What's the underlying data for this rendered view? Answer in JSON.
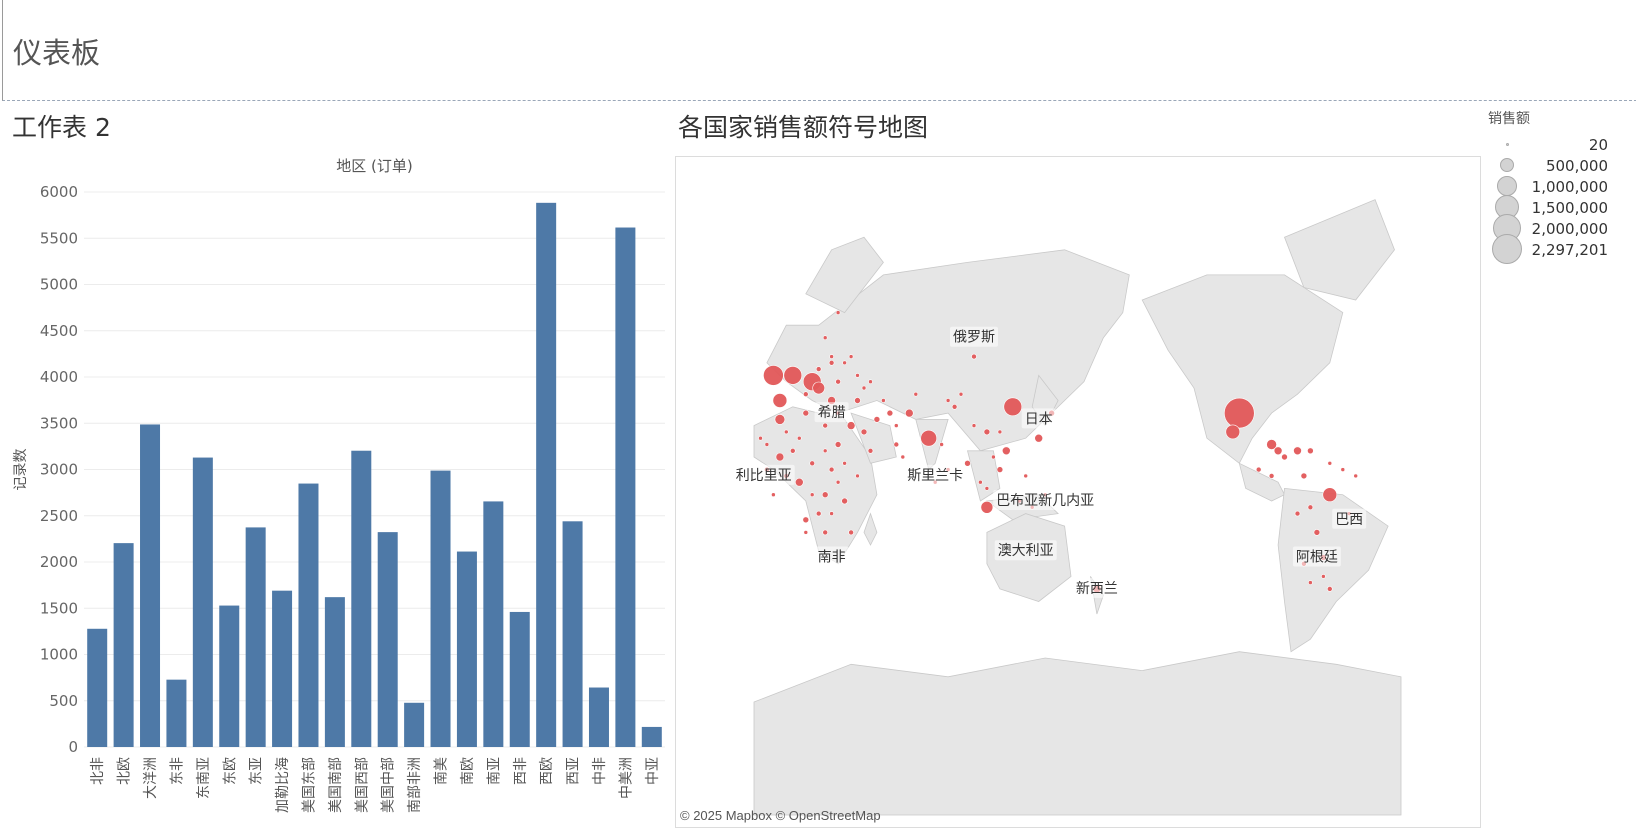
{
  "dashboard": {
    "title": "仪表板"
  },
  "worksheet": {
    "title": "工作表 2"
  },
  "map_sheet": {
    "title": "各国家销售额符号地图"
  },
  "chart_data": [
    {
      "type": "bar",
      "title": "地区 (订单)",
      "xlabel": "",
      "ylabel": "记录数",
      "ylim": [
        0,
        6000
      ],
      "yticks": [
        0,
        500,
        1000,
        1500,
        2000,
        2500,
        3000,
        3500,
        4000,
        4500,
        5000,
        5500,
        6000
      ],
      "bar_color": "#4e79a7",
      "grid": true,
      "categories": [
        "北非",
        "北欧",
        "大洋洲",
        "东非",
        "东南亚",
        "东欧",
        "东亚",
        "加勒比海",
        "美国东部",
        "美国南部",
        "美国西部",
        "美国中部",
        "南部非洲",
        "南美",
        "南欧",
        "南亚",
        "西非",
        "西欧",
        "西亚",
        "中非",
        "中美洲",
        "中亚"
      ],
      "values": [
        1278,
        2204,
        3487,
        728,
        3129,
        1529,
        2374,
        1690,
        2848,
        1620,
        3203,
        2323,
        478,
        2988,
        2113,
        2655,
        1460,
        5883,
        2440,
        643,
        5616,
        217
      ]
    },
    {
      "type": "scatter",
      "subtype": "symbol-map",
      "title": "各国家销售额符号地图",
      "marker_color": "#e15759",
      "size_field": "销售额",
      "legend": {
        "title": "销售额",
        "placement": "top-right",
        "entries": [
          "20",
          "500,000",
          "1,000,000",
          "1,500,000",
          "2,000,000",
          "2,297,201"
        ],
        "values": [
          20,
          500000,
          1000000,
          1500000,
          2000000,
          2297201
        ]
      },
      "country_labels": [
        "俄罗斯",
        "希腊",
        "日本",
        "利比里亚",
        "斯里兰卡",
        "巴布亚新几内亚",
        "澳大利亚",
        "南非",
        "新西兰",
        "巴西",
        "阿根廷"
      ],
      "attribution": "© 2025 Mapbox © OpenStreetMap"
    }
  ]
}
